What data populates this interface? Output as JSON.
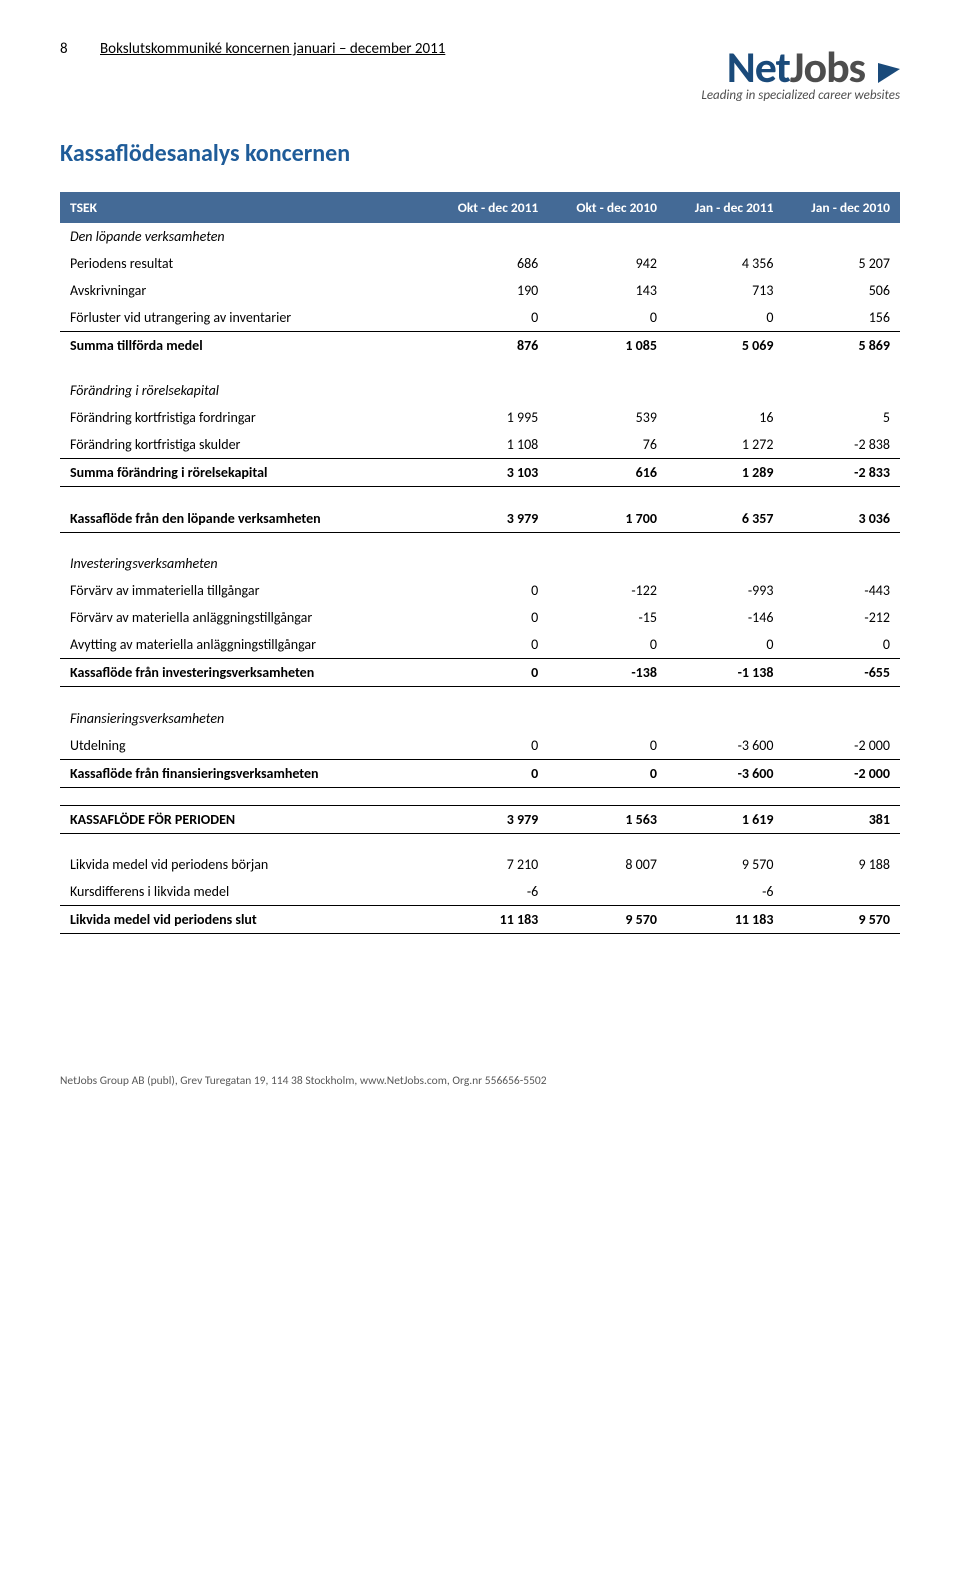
{
  "page_number": "8",
  "header_subtitle": "Bokslutskommuniké koncernen januari – december 2011",
  "logo": {
    "part1": "Net",
    "part2": "Jobs",
    "tagline": "Leading in specialized career websites"
  },
  "title": "Kassaflödesanalys koncernen",
  "columns": [
    "TSEK",
    "Okt - dec 2011",
    "Okt - dec 2010",
    "Jan - dec 2011",
    "Jan - dec 2010"
  ],
  "rows": [
    {
      "type": "italic",
      "label": "Den löpande verksamheten",
      "cells": [
        "",
        "",
        "",
        ""
      ]
    },
    {
      "type": "normal",
      "label": "Periodens resultat",
      "cells": [
        "686",
        "942",
        "4 356",
        "5 207"
      ]
    },
    {
      "type": "normal",
      "label": "Avskrivningar",
      "cells": [
        "190",
        "143",
        "713",
        "506"
      ]
    },
    {
      "type": "border-bottom",
      "label": "Förluster vid utrangering av inventarier",
      "cells": [
        "0",
        "0",
        "0",
        "156"
      ]
    },
    {
      "type": "bold",
      "label": "Summa tillförda medel",
      "cells": [
        "876",
        "1 085",
        "5 069",
        "5 869"
      ]
    },
    {
      "type": "spacer"
    },
    {
      "type": "italic",
      "label": "Förändring i rörelsekapital",
      "cells": [
        "",
        "",
        "",
        ""
      ]
    },
    {
      "type": "normal",
      "label": "Förändring kortfristiga fordringar",
      "cells": [
        "1 995",
        "539",
        "16",
        "5"
      ]
    },
    {
      "type": "border-bottom",
      "label": "Förändring kortfristiga skulder",
      "cells": [
        "1 108",
        "76",
        "1 272",
        "-2 838"
      ]
    },
    {
      "type": "bold border-bottom",
      "label": "Summa förändring i rörelsekapital",
      "cells": [
        "3 103",
        "616",
        "1 289",
        "-2 833"
      ]
    },
    {
      "type": "spacer"
    },
    {
      "type": "bold border-bottom",
      "label": "Kassaflöde från den löpande verksamheten",
      "cells": [
        "3 979",
        "1 700",
        "6 357",
        "3 036"
      ]
    },
    {
      "type": "spacer"
    },
    {
      "type": "italic",
      "label": "Investeringsverksamheten",
      "cells": [
        "",
        "",
        "",
        ""
      ]
    },
    {
      "type": "normal",
      "label": "Förvärv av immateriella tillgångar",
      "cells": [
        "0",
        "-122",
        "-993",
        "-443"
      ]
    },
    {
      "type": "normal",
      "label": "Förvärv av materiella anläggningstillgångar",
      "cells": [
        "0",
        "-15",
        "-146",
        "-212"
      ]
    },
    {
      "type": "border-bottom",
      "label": "Avytting av materiella anläggningstillgångar",
      "cells": [
        "0",
        "0",
        "0",
        "0"
      ]
    },
    {
      "type": "bold border-bottom",
      "label": "Kassaflöde från investeringsverksamheten",
      "cells": [
        "0",
        "-138",
        "-1 138",
        "-655"
      ]
    },
    {
      "type": "spacer"
    },
    {
      "type": "italic",
      "label": "Finansieringsverksamheten",
      "cells": [
        "",
        "",
        "",
        ""
      ]
    },
    {
      "type": "border-bottom",
      "label": "Utdelning",
      "cells": [
        "0",
        "0",
        "-3 600",
        "-2 000"
      ]
    },
    {
      "type": "bold border-bottom",
      "label": "Kassaflöde från finansieringsverksamheten",
      "cells": [
        "0",
        "0",
        "-3 600",
        "-2 000"
      ]
    },
    {
      "type": "spacer"
    },
    {
      "type": "bold border-top border-bottom",
      "label": "KASSAFLÖDE FÖR PERIODEN",
      "cells": [
        "3 979",
        "1 563",
        "1 619",
        "381"
      ]
    },
    {
      "type": "spacer"
    },
    {
      "type": "normal",
      "label": "Likvida medel vid periodens början",
      "cells": [
        "7 210",
        "8 007",
        "9 570",
        "9 188"
      ]
    },
    {
      "type": "border-bottom",
      "label": "Kursdifferens i likvida medel",
      "cells": [
        "-6",
        "",
        "-6",
        ""
      ]
    },
    {
      "type": "bold border-bottom",
      "label": "Likvida medel vid periodens slut",
      "cells": [
        "11 183",
        "9 570",
        "11 183",
        "9 570"
      ]
    }
  ],
  "footer": "NetJobs Group AB (publ), Grev Turegatan 19, 114 38 Stockholm, www.NetJobs.com, Org.nr 556656-5502",
  "colors": {
    "header_bg": "#446a96",
    "header_fg": "#ffffff",
    "title": "#1f5c99"
  }
}
